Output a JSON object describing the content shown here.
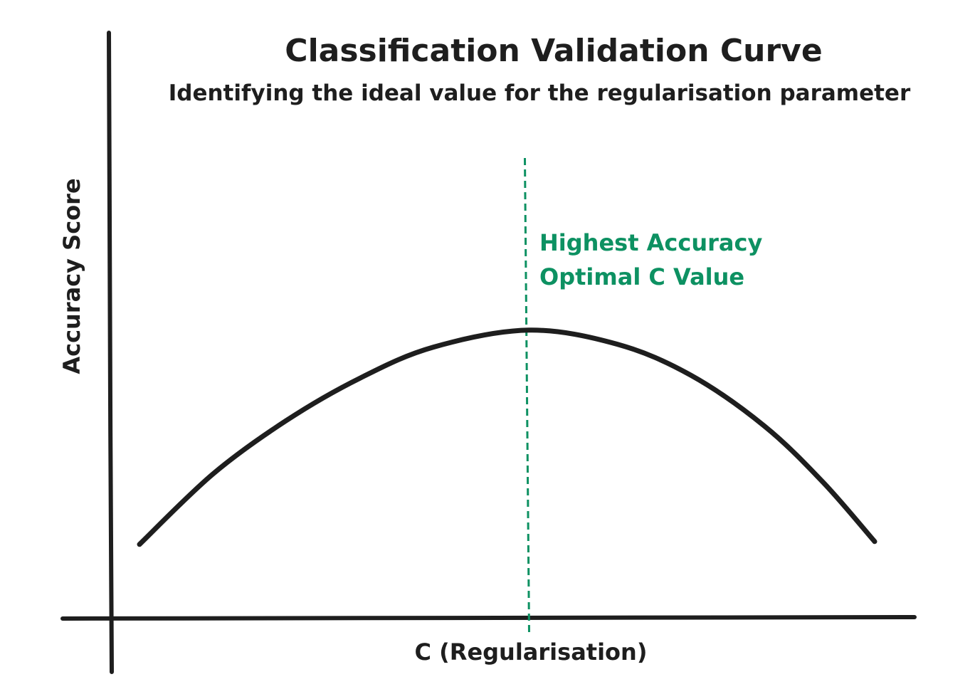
{
  "chart_data": {
    "type": "line",
    "title": "Classification Validation Curve",
    "subtitle": "Identifying the ideal value for the regularisation parameter",
    "xlabel": "C (Regularisation)",
    "ylabel": "Accuracy Score",
    "x_ticks_shown": false,
    "y_ticks_shown": false,
    "grid": false,
    "series": [
      {
        "color": "#1e1e1e",
        "shape": "inverted-parabola",
        "points": [
          {
            "x": 0.0,
            "y": 0.2
          },
          {
            "x": 0.1,
            "y": 0.45
          },
          {
            "x": 0.2,
            "y": 0.64
          },
          {
            "x": 0.3,
            "y": 0.79
          },
          {
            "x": 0.4,
            "y": 0.9
          },
          {
            "x": 0.53,
            "y": 0.96
          },
          {
            "x": 0.65,
            "y": 0.91
          },
          {
            "x": 0.75,
            "y": 0.8
          },
          {
            "x": 0.85,
            "y": 0.62
          },
          {
            "x": 0.93,
            "y": 0.42
          },
          {
            "x": 1.0,
            "y": 0.21
          }
        ]
      }
    ],
    "reference_line": {
      "orientation": "vertical",
      "style": "dashed",
      "x": 0.53,
      "color": "#0d9162"
    },
    "annotations": [
      {
        "text": "Highest Accuracy",
        "color": "#0d9162"
      },
      {
        "text": "Optimal C Value",
        "color": "#0d9162"
      }
    ]
  }
}
